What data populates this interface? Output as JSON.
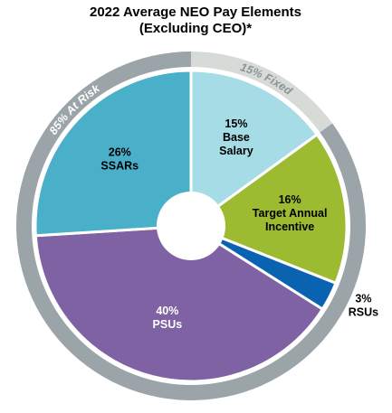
{
  "chart_data": {
    "type": "pie",
    "title": [
      "2022 Average NEO Pay Elements",
      "(Excluding CEO)*"
    ],
    "slices": [
      {
        "pct_label": "15%",
        "name_lines": [
          "Base",
          "Salary"
        ],
        "value": 15,
        "color": "#a6dce6",
        "text_color": "#000000"
      },
      {
        "pct_label": "16%",
        "name_lines": [
          "Target Annual",
          "Incentive"
        ],
        "value": 16,
        "color": "#9cbb31",
        "text_color": "#000000"
      },
      {
        "pct_label": "3%",
        "name_lines": [
          "RSUs"
        ],
        "value": 3,
        "color": "#0a63b0",
        "text_color": "#000000",
        "label_outside": true
      },
      {
        "pct_label": "40%",
        "name_lines": [
          "PSUs"
        ],
        "value": 40,
        "color": "#7f62a3",
        "text_color": "#ffffff"
      },
      {
        "pct_label": "26%",
        "name_lines": [
          "SSARs"
        ],
        "value": 26,
        "color": "#4aafc9",
        "text_color": "#000000"
      }
    ],
    "outer_ring": [
      {
        "label": "15% Fixed",
        "value": 15,
        "color": "#d6dbd8",
        "text_color": "#8c9295"
      },
      {
        "label": "85% At Risk",
        "value": 85,
        "color": "#9ba4a8",
        "text_color": "#ffffff"
      }
    ]
  }
}
